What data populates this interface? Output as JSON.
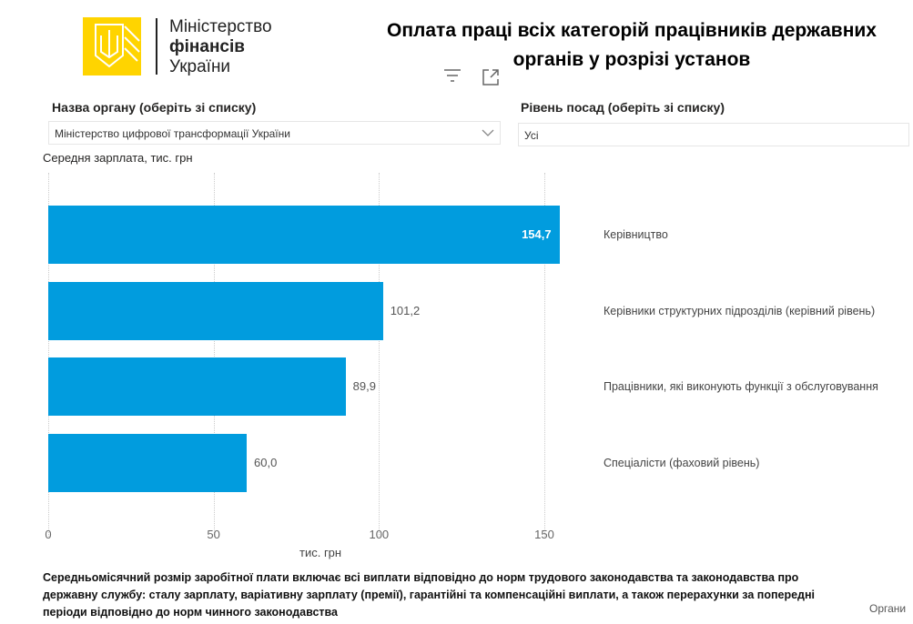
{
  "logo": {
    "line1": "Міністерство",
    "line2": "фінансів",
    "line3": "України"
  },
  "title": {
    "line1": "Оплата праці всіх категорій працівників державних",
    "line2": "органів у розрізі установ"
  },
  "filters": [
    {
      "label": "Назва органу (оберіть зі списку)",
      "value": "Міністерство цифрової трансформації України"
    },
    {
      "label": "Рівень посад (оберіть зі списку)",
      "value": "Усі"
    }
  ],
  "icons": {
    "filter": "filter-icon",
    "focus": "focus-mode-icon",
    "dropdown": "chevron-down-icon"
  },
  "chart_data": {
    "type": "bar",
    "orientation": "horizontal",
    "title": "Середня зарплата, тис. грн",
    "xlabel": "тис. грн",
    "xlim": [
      0,
      155
    ],
    "xticks": [
      "0",
      "50",
      "100",
      "150"
    ],
    "categories": [
      "Керівництво",
      "Керівники структурних підрозділів (керівний рівень)",
      "Працівники, які виконують функції з обслуговування",
      "Спеціалісти (фаховий рівень)"
    ],
    "values": [
      154.7,
      101.2,
      89.9,
      60.0
    ],
    "data_labels": [
      "154,7",
      "101,2",
      "89,9",
      "60,0"
    ],
    "color": "#019cde",
    "grid": true
  },
  "note": "Середньомісячний розмір заробітної плати включає всі виплати відповідно до норм трудового законодавства та законодавства про державну службу: сталу зарплату, варіативну зарплату (премії), гарантійні та компенсаційні виплати, а також перерахунки за попередні періоди відповідно до норм чинного законодавства",
  "footer_right": "Органи"
}
